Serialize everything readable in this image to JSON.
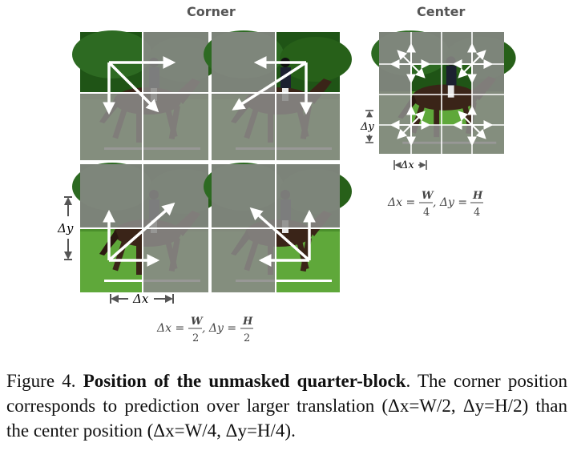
{
  "headings": {
    "corner": "Corner",
    "center": "Center"
  },
  "colors": {
    "sky": "#1f5416",
    "grass": "#5fa83a",
    "mask": "#8a8a88",
    "grid": "#ffffff",
    "horse": "#3a2418"
  },
  "corner_formula": {
    "dx": "Δx = ",
    "W": "W",
    "two1": "2",
    "sep": ", Δy = ",
    "H": "H",
    "two2": "2"
  },
  "center_formula": {
    "dx": "Δx = ",
    "W": "W",
    "four1": "4",
    "sep": ", Δy = ",
    "H": "H",
    "four2": "4"
  },
  "corner_labels": {
    "dy": "Δy",
    "dx": "Δx"
  },
  "center_labels": {
    "dy": "Δy",
    "dx": "Δx"
  },
  "caption": {
    "prefix": "Figure 4.",
    "title": "Position of the unmasked quarter-block",
    "body": ". The corner position corresponds to prediction over larger translation (Δx=W/2, Δy=H/2) than the center position (Δx=W/4, Δy=H/4)."
  }
}
